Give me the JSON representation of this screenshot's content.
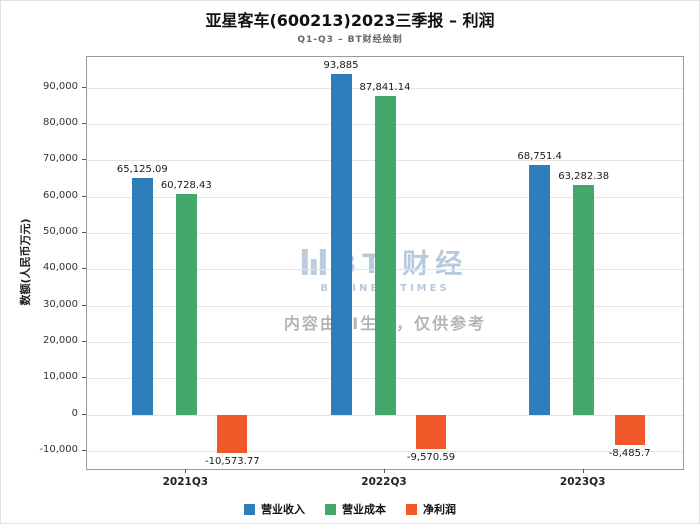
{
  "title": "亚星客车(600213)2023三季报 – 利润",
  "subtitle": "Q1-Q3 – BT财经绘制",
  "watermark": {
    "logo_text": "BT 财经",
    "logo_sub": "BUSINESSTIMES",
    "disclaimer": "内容由AI生成，仅供参考"
  },
  "chart_data": {
    "type": "bar",
    "title": "亚星客车(600213)2023三季报 – 利润",
    "subtitle": "Q1-Q3 – BT财经绘制",
    "ylabel": "数额(人民币万元)",
    "xlabel": "",
    "categories": [
      "2021Q3",
      "2022Q3",
      "2023Q3"
    ],
    "series": [
      {
        "name": "营业收入",
        "color": "#2e7ebc",
        "values": [
          65125.09,
          93885,
          68751.4
        ],
        "labels": [
          "65,125.09",
          "93,885",
          "68,751.4"
        ]
      },
      {
        "name": "营业成本",
        "color": "#44a86c",
        "values": [
          60728.43,
          87841.14,
          63282.38
        ],
        "labels": [
          "60,728.43",
          "87,841.14",
          "63,282.38"
        ]
      },
      {
        "name": "净利润",
        "color": "#f1592a",
        "values": [
          -10573.77,
          -9570.59,
          -8485.7
        ],
        "labels": [
          "-10,573.77",
          "-9,570.59",
          "-8,485.7"
        ]
      }
    ],
    "yticks": [
      -10000,
      0,
      10000,
      20000,
      30000,
      40000,
      50000,
      60000,
      70000,
      80000,
      90000
    ],
    "ytick_labels": [
      "-10,000",
      "0",
      "10,000",
      "20,000",
      "30,000",
      "40,000",
      "50,000",
      "60,000",
      "70,000",
      "80,000",
      "90,000"
    ],
    "ylim": [
      -15000,
      98500
    ],
    "grid": true,
    "legend_position": "bottom"
  }
}
